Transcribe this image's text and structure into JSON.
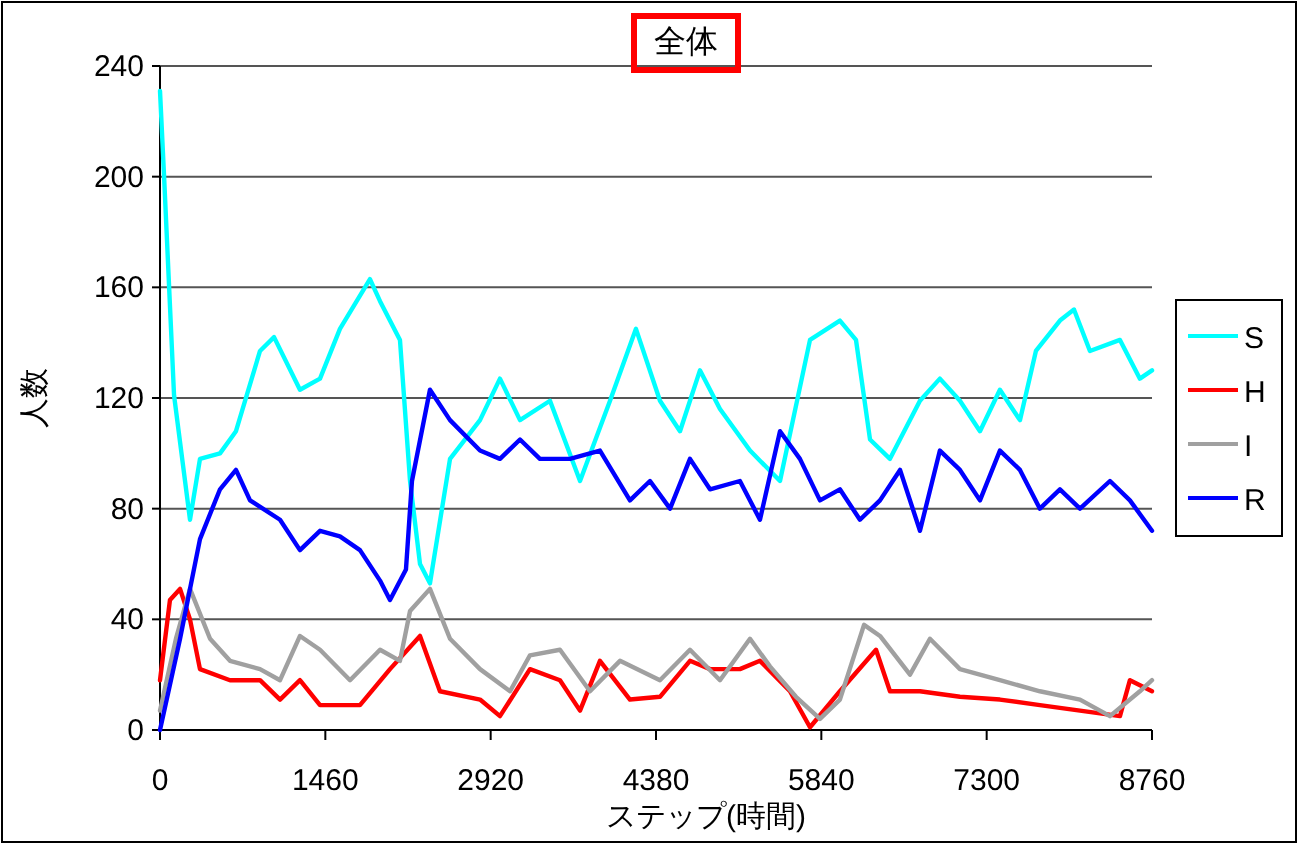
{
  "chart_data": {
    "type": "line",
    "title": "全体",
    "xlabel": "ステップ(時間)",
    "ylabel": "人数",
    "xlim": [
      0,
      8760
    ],
    "xticks": [
      0,
      1460,
      2920,
      4380,
      5840,
      7300,
      8760
    ],
    "ylim": [
      0,
      240
    ],
    "yticks": [
      0,
      40,
      80,
      120,
      160,
      200,
      240
    ],
    "grid": "y",
    "legend": "right",
    "marker": "none",
    "line_style": "solid",
    "series": [
      {
        "name": "S",
        "color": "#00ffff",
        "x": [
          0,
          35,
          124,
          265,
          353,
          530,
          671,
          883,
          1007,
          1236,
          1413,
          1589,
          1854,
          1943,
          2119,
          2208,
          2296,
          2384,
          2561,
          2826,
          3002,
          3179,
          3444,
          3709,
          3974,
          4203,
          4415,
          4592,
          4768,
          4945,
          5210,
          5475,
          5740,
          6004,
          6146,
          6270,
          6446,
          6711,
          6887,
          7064,
          7241,
          7417,
          7594,
          7735,
          7947,
          8071,
          8212,
          8477,
          8653,
          8760
        ],
        "values": [
          231,
          201,
          121,
          76,
          98,
          100,
          108,
          137,
          142,
          123,
          127,
          145,
          163,
          155,
          141,
          90,
          60,
          53,
          98,
          112,
          127,
          112,
          119,
          90,
          119,
          145,
          119,
          108,
          130,
          116,
          101,
          90,
          141,
          148,
          141,
          105,
          98,
          119,
          127,
          119,
          108,
          123,
          112,
          137,
          148,
          152,
          137,
          141,
          127,
          130
        ]
      },
      {
        "name": "H",
        "color": "#ff0000",
        "x": [
          0,
          88,
          177,
          265,
          353,
          618,
          883,
          1060,
          1236,
          1413,
          1766,
          2031,
          2296,
          2472,
          2826,
          3002,
          3267,
          3532,
          3709,
          3885,
          4150,
          4415,
          4680,
          4857,
          5121,
          5298,
          5563,
          5740,
          6004,
          6323,
          6446,
          6711,
          7064,
          7417,
          7770,
          8124,
          8477,
          8565,
          8760
        ],
        "values": [
          18,
          47,
          51,
          40,
          22,
          18,
          18,
          11,
          18,
          9,
          9,
          22,
          34,
          14,
          11,
          5,
          22,
          18,
          7,
          25,
          11,
          12,
          25,
          22,
          22,
          25,
          14,
          1,
          14,
          29,
          14,
          14,
          12,
          11,
          9,
          7,
          5,
          18,
          14
        ]
      },
      {
        "name": "I",
        "color": "#a0a0a0",
        "x": [
          0,
          141,
          265,
          442,
          618,
          883,
          1060,
          1236,
          1413,
          1678,
          1943,
          2119,
          2208,
          2384,
          2561,
          2826,
          3091,
          3267,
          3532,
          3797,
          4062,
          4415,
          4680,
          4945,
          5210,
          5386,
          5616,
          5828,
          6004,
          6217,
          6358,
          6623,
          6799,
          7064,
          7417,
          7770,
          8124,
          8389,
          8653,
          8760
        ],
        "values": [
          7,
          33,
          51,
          33,
          25,
          22,
          18,
          34,
          29,
          18,
          29,
          25,
          43,
          51,
          33,
          22,
          14,
          27,
          29,
          14,
          25,
          18,
          29,
          18,
          33,
          23,
          12,
          4,
          11,
          38,
          34,
          20,
          33,
          22,
          18,
          14,
          11,
          5,
          14,
          18
        ]
      },
      {
        "name": "R",
        "color": "#0000ff",
        "x": [
          0,
          177,
          353,
          530,
          671,
          795,
          1060,
          1236,
          1413,
          1589,
          1766,
          1943,
          2031,
          2172,
          2225,
          2384,
          2561,
          2826,
          3002,
          3179,
          3355,
          3620,
          3885,
          4150,
          4327,
          4504,
          4680,
          4857,
          5121,
          5298,
          5475,
          5651,
          5828,
          6004,
          6181,
          6358,
          6535,
          6711,
          6887,
          7064,
          7241,
          7417,
          7594,
          7770,
          7947,
          8124,
          8389,
          8565,
          8760
        ],
        "values": [
          0,
          33,
          69,
          87,
          94,
          83,
          76,
          65,
          72,
          70,
          65,
          54,
          47,
          58,
          90,
          123,
          112,
          101,
          98,
          105,
          98,
          98,
          101,
          83,
          90,
          80,
          98,
          87,
          90,
          76,
          108,
          98,
          83,
          87,
          76,
          83,
          94,
          72,
          101,
          94,
          83,
          101,
          94,
          80,
          87,
          80,
          90,
          83,
          72
        ]
      }
    ]
  }
}
